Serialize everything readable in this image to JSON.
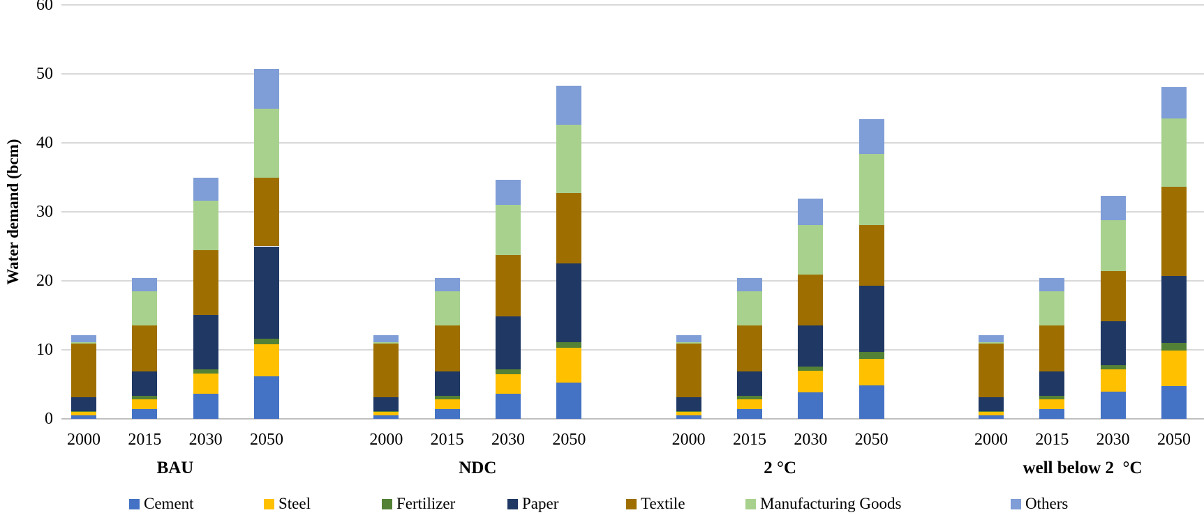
{
  "chart_data": {
    "type": "bar",
    "stacked": true,
    "title": "",
    "xlabel": "",
    "ylabel": "Water demand (bcm)",
    "ylim": [
      0,
      60
    ],
    "yticks": [
      "0",
      "10",
      "20",
      "30",
      "40",
      "50",
      "60"
    ],
    "grid": true,
    "legend_position": "bottom",
    "years": [
      "2000",
      "2015",
      "2030",
      "2050"
    ],
    "groups": [
      {
        "label": "BAU"
      },
      {
        "label": "NDC"
      },
      {
        "label": "2 °C"
      },
      {
        "label": "well below 2  °C"
      }
    ],
    "series": [
      {
        "name": "Cement",
        "color": "#4472C4",
        "values": [
          [
            0.5,
            1.4,
            3.6,
            6.2
          ],
          [
            0.5,
            1.4,
            3.6,
            5.3
          ],
          [
            0.5,
            1.4,
            3.8,
            4.8
          ],
          [
            0.5,
            1.4,
            3.9,
            4.7
          ]
        ]
      },
      {
        "name": "Steel",
        "color": "#FFC000",
        "values": [
          [
            0.5,
            1.4,
            3.0,
            4.6
          ],
          [
            0.5,
            1.4,
            2.9,
            5.0
          ],
          [
            0.5,
            1.4,
            3.2,
            3.9
          ],
          [
            0.5,
            1.4,
            3.3,
            5.2
          ]
        ]
      },
      {
        "name": "Fertilizer",
        "color": "#538135",
        "values": [
          [
            0.1,
            0.5,
            0.6,
            0.8
          ],
          [
            0.1,
            0.5,
            0.7,
            0.8
          ],
          [
            0.1,
            0.5,
            0.6,
            1.0
          ],
          [
            0.1,
            0.5,
            0.6,
            1.1
          ]
        ]
      },
      {
        "name": "Paper",
        "color": "#203864",
        "values": [
          [
            2.0,
            3.6,
            7.9,
            13.4
          ],
          [
            2.0,
            3.6,
            7.6,
            11.4
          ],
          [
            2.0,
            3.6,
            5.9,
            9.6
          ],
          [
            2.0,
            3.6,
            6.3,
            9.7
          ]
        ]
      },
      {
        "name": "Textile",
        "color": "#9E6F00",
        "values": [
          [
            7.8,
            6.6,
            9.3,
            9.9
          ],
          [
            7.8,
            6.6,
            8.9,
            10.2
          ],
          [
            7.8,
            6.6,
            7.4,
            8.8
          ],
          [
            7.8,
            6.6,
            7.3,
            12.9
          ]
        ]
      },
      {
        "name": "Manufacturing Goods",
        "color": "#A9D18E",
        "values": [
          [
            0.2,
            5.0,
            7.2,
            10.0
          ],
          [
            0.2,
            5.0,
            7.3,
            9.9
          ],
          [
            0.2,
            5.0,
            7.2,
            10.3
          ],
          [
            0.2,
            5.0,
            7.4,
            9.9
          ]
        ]
      },
      {
        "name": "Others",
        "color": "#7F9DD6",
        "values": [
          [
            1.0,
            1.9,
            3.4,
            5.8
          ],
          [
            1.0,
            1.9,
            3.6,
            5.7
          ],
          [
            1.0,
            1.9,
            3.8,
            5.0
          ],
          [
            1.0,
            1.9,
            3.5,
            4.6
          ]
        ]
      }
    ]
  }
}
